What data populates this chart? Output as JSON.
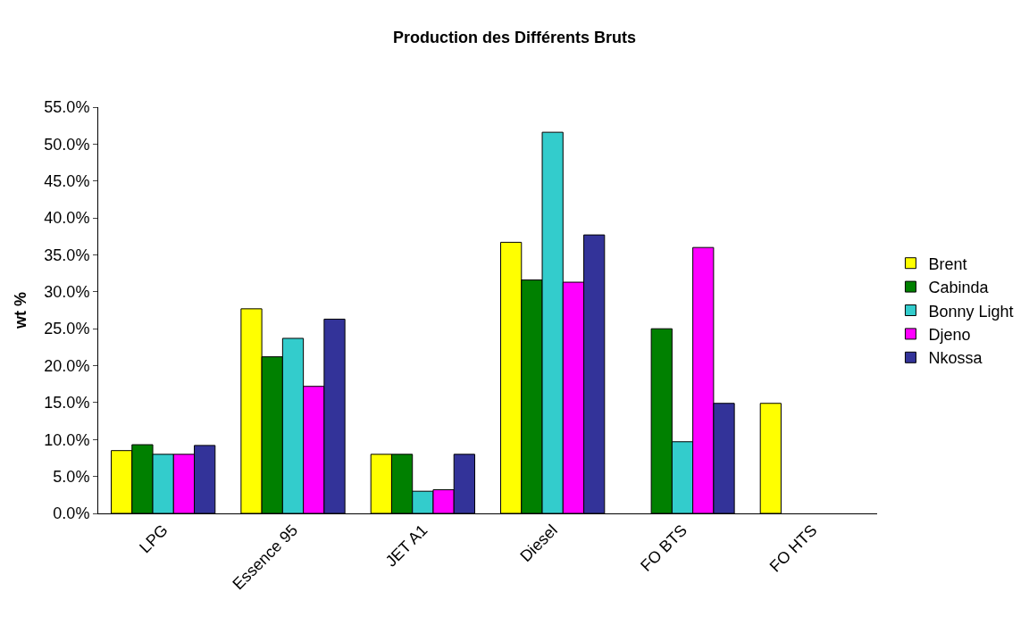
{
  "chart_data": {
    "type": "bar",
    "title": "Production des Différents Bruts",
    "ylabel": "wt %",
    "categories": [
      "LPG",
      "Essence 95",
      "JET A1",
      "Diesel",
      "FO BTS",
      "FO HTS"
    ],
    "series": [
      {
        "name": "Brent",
        "color": "#ffff00",
        "values": [
          8.5,
          27.7,
          8.0,
          36.7,
          null,
          14.9
        ]
      },
      {
        "name": "Cabinda",
        "color": "#008000",
        "values": [
          9.3,
          21.2,
          8.0,
          31.6,
          25.0,
          null
        ]
      },
      {
        "name": "Bonny Light",
        "color": "#33cccc",
        "values": [
          8.0,
          23.7,
          3.0,
          51.6,
          9.7,
          null
        ]
      },
      {
        "name": "Djeno",
        "color": "#ff00ff",
        "values": [
          8.0,
          17.2,
          3.2,
          31.3,
          36.0,
          null
        ]
      },
      {
        "name": "Nkossa",
        "color": "#333399",
        "values": [
          9.2,
          26.3,
          8.0,
          37.7,
          14.9,
          null
        ]
      }
    ],
    "ylim": [
      0,
      55
    ],
    "yticks": [
      {
        "value": 0,
        "label": "0.0%"
      },
      {
        "value": 5,
        "label": "5.0%"
      },
      {
        "value": 10,
        "label": "10.0%"
      },
      {
        "value": 15,
        "label": "15.0%"
      },
      {
        "value": 20,
        "label": "20.0%"
      },
      {
        "value": 25,
        "label": "25.0%"
      },
      {
        "value": 30,
        "label": "30.0%"
      },
      {
        "value": 35,
        "label": "35.0%"
      },
      {
        "value": 40,
        "label": "40.0%"
      },
      {
        "value": 45,
        "label": "45.0%"
      },
      {
        "value": 50,
        "label": "50.0%"
      },
      {
        "value": 55,
        "label": "55.0%"
      }
    ],
    "legend": "right"
  }
}
